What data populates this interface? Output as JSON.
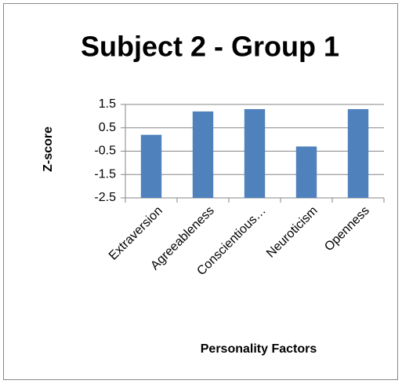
{
  "chart_data": {
    "type": "bar",
    "title": "Subject 2 - Group 1",
    "y_label": "Z-score",
    "x_label": "Personality Factors",
    "categories": [
      "Extraversion",
      "Agreeableness",
      "Conscientious…",
      "Neuroticism",
      "Openness"
    ],
    "values": [
      0.2,
      1.2,
      1.3,
      -0.3,
      1.3
    ],
    "color": "#4f81bd",
    "ylim": [
      -2.5,
      1.5
    ],
    "yticks": [
      -2.5,
      -1.5,
      -0.5,
      0.5,
      1.5
    ],
    "grid": true
  }
}
